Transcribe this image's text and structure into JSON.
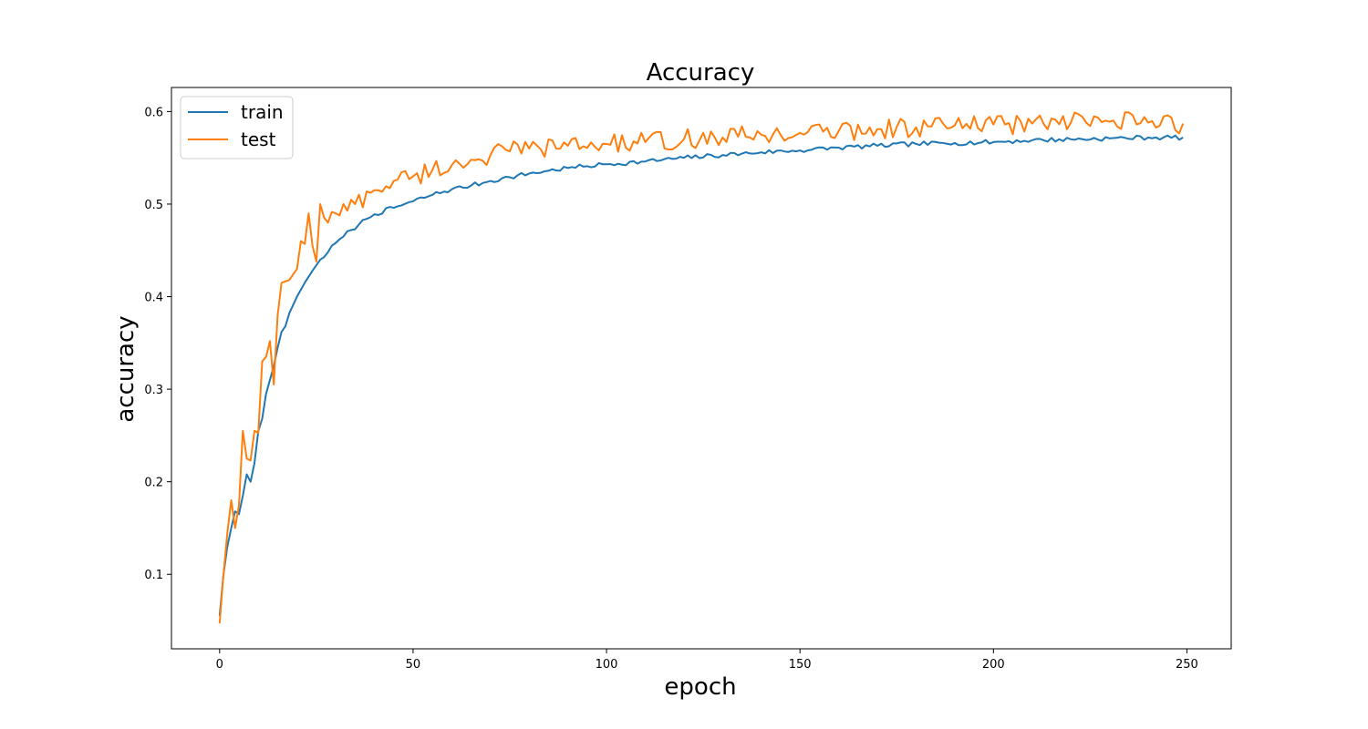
{
  "chart_data": {
    "type": "line",
    "title": "Accuracy",
    "xlabel": "epoch",
    "ylabel": "accuracy",
    "xlim": [
      -12.45,
      261.45
    ],
    "ylim": [
      0.0195,
      0.626
    ],
    "xticks": [
      0,
      50,
      100,
      150,
      200,
      250
    ],
    "yticks": [
      0.1,
      0.2,
      0.3,
      0.4,
      0.5,
      0.6
    ],
    "grid": false,
    "legend_position": "top-left",
    "series": [
      {
        "name": "train",
        "color": "#1f77b4",
        "anchors": [
          [
            0,
            0.055
          ],
          [
            1,
            0.1
          ],
          [
            2,
            0.13
          ],
          [
            3,
            0.15
          ],
          [
            4,
            0.168
          ],
          [
            5,
            0.165
          ],
          [
            6,
            0.185
          ],
          [
            7,
            0.208
          ],
          [
            8,
            0.2
          ],
          [
            9,
            0.22
          ],
          [
            10,
            0.255
          ],
          [
            11,
            0.268
          ],
          [
            12,
            0.295
          ],
          [
            13,
            0.31
          ],
          [
            14,
            0.325
          ],
          [
            15,
            0.345
          ],
          [
            16,
            0.362
          ],
          [
            17,
            0.368
          ],
          [
            18,
            0.382
          ],
          [
            20,
            0.4
          ],
          [
            22,
            0.415
          ],
          [
            24,
            0.428
          ],
          [
            26,
            0.44
          ],
          [
            28,
            0.448
          ],
          [
            30,
            0.458
          ],
          [
            32,
            0.465
          ],
          [
            34,
            0.472
          ],
          [
            36,
            0.478
          ],
          [
            38,
            0.484
          ],
          [
            40,
            0.489
          ],
          [
            45,
            0.496
          ],
          [
            50,
            0.503
          ],
          [
            55,
            0.51
          ],
          [
            60,
            0.516
          ],
          [
            65,
            0.52
          ],
          [
            70,
            0.525
          ],
          [
            75,
            0.529
          ],
          [
            80,
            0.533
          ],
          [
            85,
            0.536
          ],
          [
            90,
            0.539
          ],
          [
            95,
            0.541
          ],
          [
            100,
            0.543
          ],
          [
            110,
            0.546
          ],
          [
            120,
            0.55
          ],
          [
            130,
            0.553
          ],
          [
            140,
            0.556
          ],
          [
            150,
            0.558
          ],
          [
            160,
            0.561
          ],
          [
            170,
            0.563
          ],
          [
            180,
            0.565
          ],
          [
            190,
            0.566
          ],
          [
            200,
            0.567
          ],
          [
            210,
            0.569
          ],
          [
            220,
            0.57
          ],
          [
            230,
            0.571
          ],
          [
            240,
            0.572
          ],
          [
            249,
            0.572
          ]
        ],
        "noise": 0.0025
      },
      {
        "name": "test",
        "color": "#ff7f0e",
        "anchors": [
          [
            0,
            0.047
          ],
          [
            1,
            0.1
          ],
          [
            2,
            0.145
          ],
          [
            3,
            0.18
          ],
          [
            4,
            0.15
          ],
          [
            5,
            0.175
          ],
          [
            6,
            0.255
          ],
          [
            7,
            0.225
          ],
          [
            8,
            0.223
          ],
          [
            9,
            0.255
          ],
          [
            10,
            0.253
          ],
          [
            11,
            0.33
          ],
          [
            12,
            0.335
          ],
          [
            13,
            0.352
          ],
          [
            14,
            0.305
          ],
          [
            15,
            0.38
          ],
          [
            16,
            0.415
          ],
          [
            18,
            0.418
          ],
          [
            20,
            0.43
          ],
          [
            21,
            0.46
          ],
          [
            22,
            0.457
          ],
          [
            23,
            0.49
          ],
          [
            24,
            0.455
          ],
          [
            25,
            0.438
          ],
          [
            26,
            0.5
          ],
          [
            28,
            0.48
          ],
          [
            30,
            0.49
          ],
          [
            35,
            0.5
          ],
          [
            40,
            0.515
          ],
          [
            45,
            0.525
          ],
          [
            50,
            0.53
          ],
          [
            55,
            0.537
          ],
          [
            60,
            0.542
          ],
          [
            65,
            0.548
          ],
          [
            70,
            0.553
          ],
          [
            75,
            0.557
          ],
          [
            80,
            0.56
          ],
          [
            90,
            0.563
          ],
          [
            100,
            0.565
          ],
          [
            110,
            0.567
          ],
          [
            120,
            0.57
          ],
          [
            130,
            0.572
          ],
          [
            140,
            0.575
          ],
          [
            150,
            0.577
          ],
          [
            160,
            0.579
          ],
          [
            170,
            0.581
          ],
          [
            180,
            0.583
          ],
          [
            190,
            0.585
          ],
          [
            200,
            0.586
          ],
          [
            210,
            0.587
          ],
          [
            220,
            0.588
          ],
          [
            230,
            0.589
          ],
          [
            240,
            0.588
          ],
          [
            249,
            0.587
          ]
        ],
        "noise": 0.011
      }
    ]
  }
}
